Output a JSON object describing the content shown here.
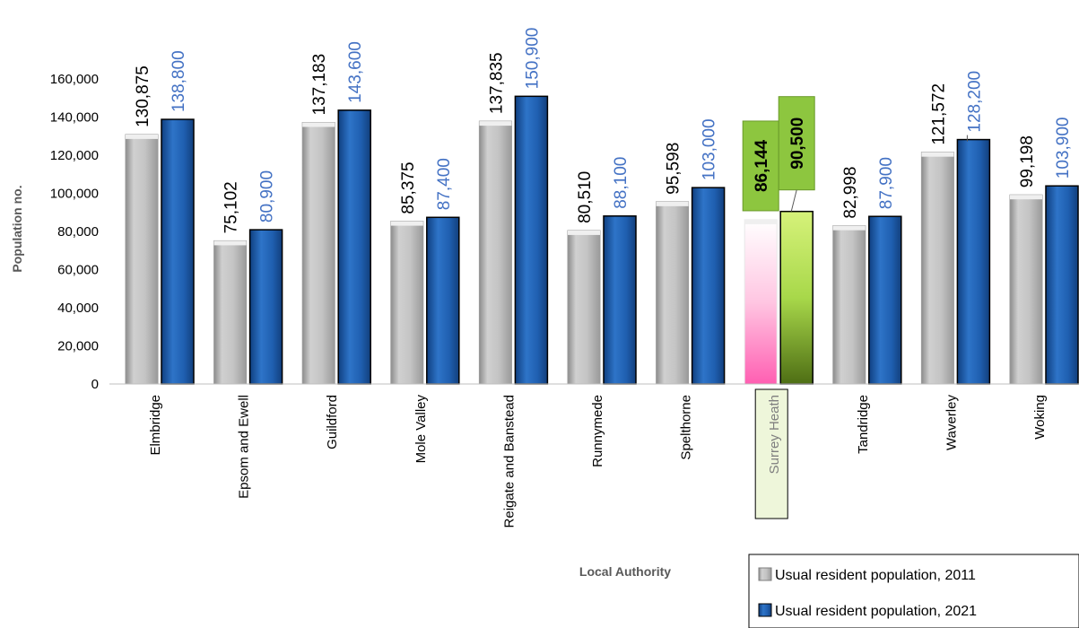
{
  "chart_data": {
    "type": "bar",
    "ylabel": "Population no.",
    "xlabel": "Local Authority",
    "ylim": [
      0,
      160000
    ],
    "yticks": [
      "0",
      "20,000",
      "40,000",
      "60,000",
      "80,000",
      "100,000",
      "120,000",
      "140,000",
      "160,000"
    ],
    "categories": [
      "Elmbridge",
      "Epsom and Ewell",
      "Guildford",
      "Mole Valley",
      "Reigate and Banstead",
      "Runnymede",
      "Spelthorne",
      "Surrey Heath",
      "Tandridge",
      "Waverley",
      "Woking"
    ],
    "highlighted_category": "Surrey Heath",
    "series": [
      {
        "name": "Usual resident population, 2011",
        "values": [
          130875,
          75102,
          137183,
          85375,
          137835,
          80510,
          95598,
          86144,
          82998,
          121572,
          99198
        ],
        "labels": [
          "130,875",
          "75,102",
          "137,183",
          "85,375",
          "137,835",
          "80,510",
          "95,598",
          "86,144",
          "82,998",
          "121,572",
          "99,198"
        ],
        "color": "#BFBFBF",
        "label_color": "#000000",
        "highlight_color": "#FF99CC"
      },
      {
        "name": "Usual resident population, 2021",
        "values": [
          138800,
          80900,
          143600,
          87400,
          150900,
          88100,
          103000,
          90500,
          87900,
          128200,
          103900
        ],
        "labels": [
          "138,800",
          "80,900",
          "143,600",
          "87,400",
          "150,900",
          "88,100",
          "103,000",
          "90,500",
          "87,900",
          "128,200",
          "103,900"
        ],
        "color": "#1F5FAF",
        "label_color": "#4472C4",
        "highlight_color": "#92D050"
      }
    ],
    "grid": false,
    "legend_position": "bottom-right"
  }
}
